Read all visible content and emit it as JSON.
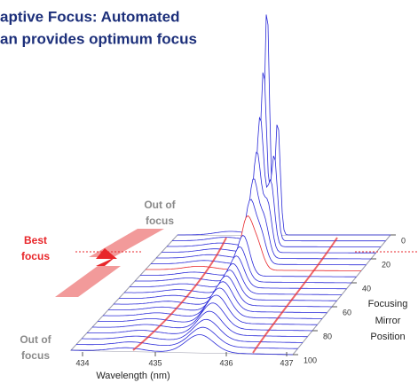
{
  "title": [
    "aptive Focus: Automated",
    "an provides optimum focus"
  ],
  "annotations": {
    "out_of_focus_top": [
      "Out of",
      "focus"
    ],
    "best_focus": [
      "Best",
      "focus"
    ],
    "out_of_focus_bottom": [
      "Out of",
      "focus"
    ]
  },
  "x_axis": {
    "label": "Wavelength (nm)",
    "ticks": [
      434,
      435,
      436,
      437
    ]
  },
  "depth_axis": {
    "label": [
      "Focusing",
      "Mirror",
      "Position"
    ],
    "ticks": [
      0,
      20,
      40,
      60,
      80,
      100
    ]
  }
}
